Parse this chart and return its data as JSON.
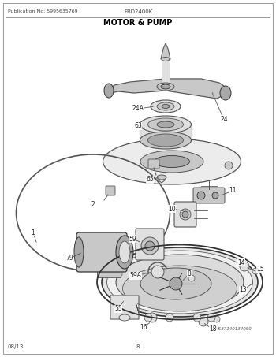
{
  "pub_no": "Publication No: 5995635769",
  "model": "FBD2400K",
  "title": "MOTOR & PUMP",
  "image_id": "MS871401340S0",
  "date": "08/13",
  "page": "8",
  "bg_color": "#ffffff",
  "line_color": "#555555",
  "dark_line": "#333333",
  "light_fill": "#e0e0e0",
  "mid_fill": "#c8c8c8",
  "dark_fill": "#a8a8a8"
}
